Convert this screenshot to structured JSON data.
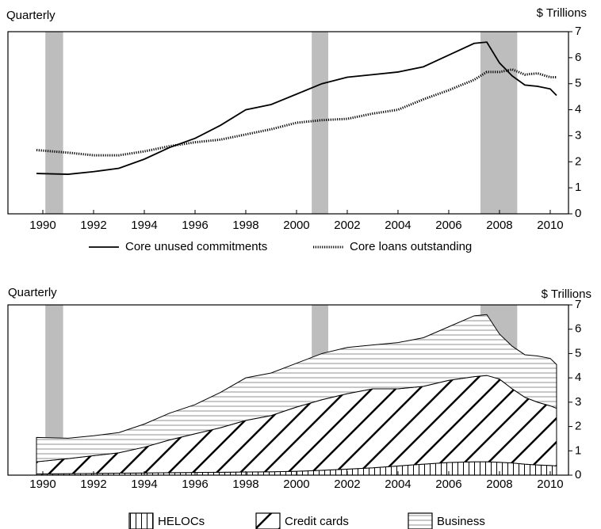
{
  "chart_data": [
    {
      "type": "line",
      "y_label": "$ Trillions",
      "frequency": "Quarterly",
      "x": [
        1989.75,
        1991,
        1992,
        1993,
        1994,
        1995,
        1996,
        1997,
        1998,
        1999,
        2000,
        2001,
        2002,
        2003,
        2004,
        2005,
        2006,
        2007,
        2007.5,
        2008,
        2008.5,
        2009,
        2009.5,
        2010,
        2010.25
      ],
      "series": [
        {
          "name": "Core unused commitments",
          "color": "#000000",
          "style": "solid",
          "values": [
            1.55,
            1.52,
            1.62,
            1.75,
            2.1,
            2.55,
            2.9,
            3.4,
            4.0,
            4.2,
            4.6,
            5.0,
            5.25,
            5.35,
            5.45,
            5.65,
            6.1,
            6.55,
            6.6,
            5.8,
            5.3,
            4.95,
            4.9,
            4.8,
            4.55
          ]
        },
        {
          "name": "Core loans outstanding",
          "color": "#000000",
          "style": "dotted",
          "values": [
            2.45,
            2.35,
            2.25,
            2.25,
            2.4,
            2.6,
            2.75,
            2.85,
            3.05,
            3.25,
            3.5,
            3.6,
            3.65,
            3.85,
            4.0,
            4.4,
            4.75,
            5.15,
            5.45,
            5.45,
            5.55,
            5.35,
            5.4,
            5.25,
            5.25
          ]
        }
      ],
      "shaded_periods": [
        [
          1990.1,
          1990.8
        ],
        [
          2000.6,
          2001.25
        ],
        [
          2007.25,
          2008.7
        ]
      ],
      "xlim": [
        1988.625,
        2010.72
      ],
      "xticks": [
        1990,
        1992,
        1994,
        1996,
        1998,
        2000,
        2002,
        2004,
        2006,
        2008,
        2010
      ],
      "ylim": [
        0,
        7
      ],
      "yticks": [
        0,
        1,
        2,
        3,
        4,
        5,
        6,
        7
      ]
    },
    {
      "type": "stacked_area",
      "y_label": "$ Trillions",
      "frequency": "Quarterly",
      "x": [
        1989.75,
        1991,
        1992,
        1993,
        1994,
        1995,
        1996,
        1997,
        1998,
        1999,
        2000,
        2001,
        2002,
        2003,
        2004,
        2005,
        2006,
        2007,
        2007.5,
        2008,
        2008.5,
        2009,
        2009.5,
        2010,
        2010.25
      ],
      "series": [
        {
          "name": "HELOCs",
          "color": "#000000",
          "pattern": "vertical",
          "values": [
            0.05,
            0.06,
            0.07,
            0.08,
            0.09,
            0.1,
            0.11,
            0.12,
            0.13,
            0.14,
            0.16,
            0.2,
            0.25,
            0.3,
            0.38,
            0.45,
            0.52,
            0.55,
            0.55,
            0.53,
            0.5,
            0.45,
            0.42,
            0.4,
            0.38
          ]
        },
        {
          "name": "Credit cards",
          "color": "#000000",
          "pattern": "diagonal",
          "values": [
            0.5,
            0.62,
            0.73,
            0.84,
            1.06,
            1.35,
            1.59,
            1.83,
            2.12,
            2.31,
            2.64,
            2.9,
            3.1,
            3.25,
            3.17,
            3.2,
            3.38,
            3.5,
            3.55,
            3.42,
            3.05,
            2.75,
            2.58,
            2.45,
            2.37
          ]
        },
        {
          "name": "Business",
          "color": "#000000",
          "pattern": "horizontal",
          "values": [
            1.0,
            0.84,
            0.82,
            0.83,
            0.95,
            1.1,
            1.2,
            1.45,
            1.75,
            1.75,
            1.8,
            1.9,
            1.9,
            1.8,
            1.9,
            2.0,
            2.2,
            2.5,
            2.5,
            1.85,
            1.75,
            1.75,
            1.9,
            1.95,
            1.8
          ]
        }
      ],
      "shaded_periods": [
        [
          1990.1,
          1990.8
        ],
        [
          2000.6,
          2001.25
        ],
        [
          2007.25,
          2008.7
        ]
      ],
      "xlim": [
        1988.625,
        2010.72
      ],
      "xticks": [
        1990,
        1992,
        1994,
        1996,
        1998,
        2000,
        2002,
        2004,
        2006,
        2008,
        2010
      ],
      "ylim": [
        0,
        7
      ],
      "yticks": [
        0,
        1,
        2,
        3,
        4,
        5,
        6,
        7
      ]
    }
  ]
}
